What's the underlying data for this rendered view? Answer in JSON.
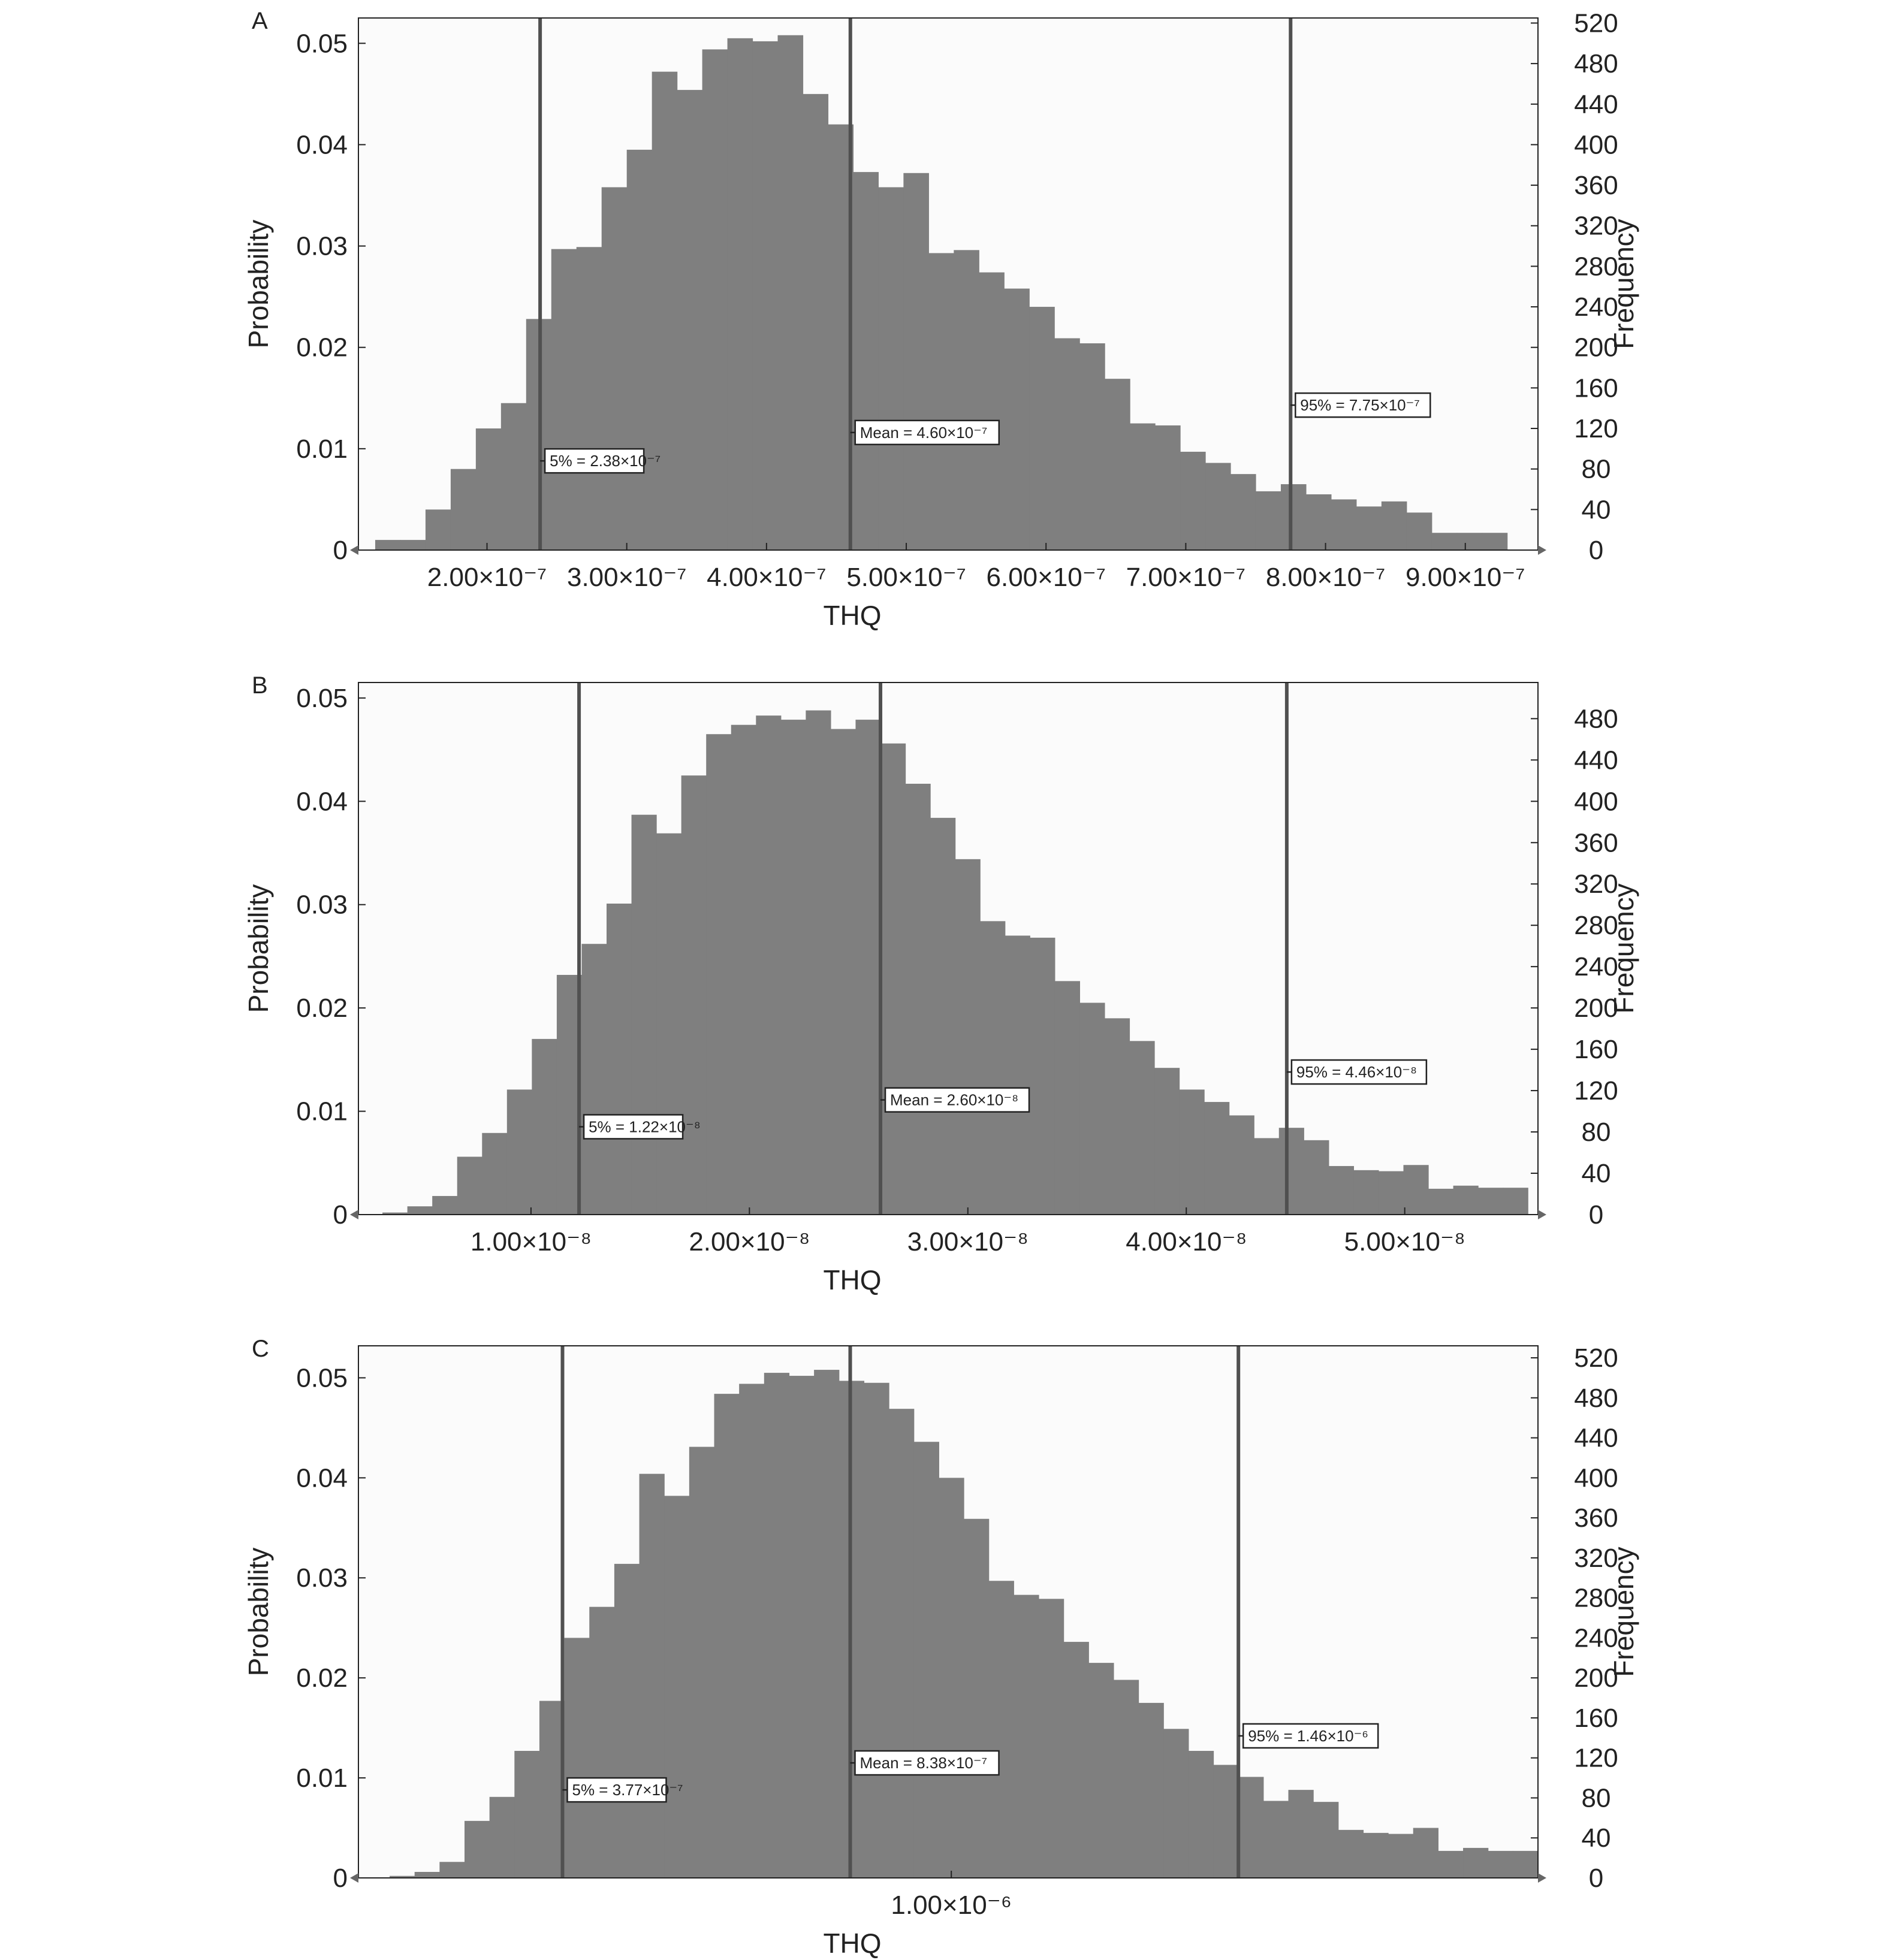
{
  "chart_data": [
    {
      "panel": "A",
      "type": "histogram",
      "xlabel": "THQ",
      "ylabel": "Probability",
      "y2label": "Frequency",
      "xlim": [
        1.08e-07,
        9.52e-07
      ],
      "ylim": [
        0,
        0.0525
      ],
      "y2lim": [
        0,
        525
      ],
      "x_ticks": [
        {
          "value": 2e-07,
          "label": "2.00×10⁻⁷"
        },
        {
          "value": 3e-07,
          "label": "3.00×10⁻⁷"
        },
        {
          "value": 4e-07,
          "label": "4.00×10⁻⁷"
        },
        {
          "value": 5e-07,
          "label": "5.00×10⁻⁷"
        },
        {
          "value": 6e-07,
          "label": "6.00×10⁻⁷"
        },
        {
          "value": 7e-07,
          "label": "7.00×10⁻⁷"
        },
        {
          "value": 8e-07,
          "label": "8.00×10⁻⁷"
        },
        {
          "value": 9e-07,
          "label": "9.00×10⁻⁷"
        }
      ],
      "y_ticks": [
        {
          "value": 0,
          "label": "0"
        },
        {
          "value": 0.01,
          "label": "0.01"
        },
        {
          "value": 0.02,
          "label": "0.02"
        },
        {
          "value": 0.03,
          "label": "0.03"
        },
        {
          "value": 0.04,
          "label": "0.04"
        },
        {
          "value": 0.05,
          "label": "0.05"
        }
      ],
      "y2_ticks": [
        {
          "value": 0,
          "label": "0"
        },
        {
          "value": 40,
          "label": "40"
        },
        {
          "value": 80,
          "label": "80"
        },
        {
          "value": 120,
          "label": "120"
        },
        {
          "value": 160,
          "label": "160"
        },
        {
          "value": 200,
          "label": "200"
        },
        {
          "value": 240,
          "label": "240"
        },
        {
          "value": 280,
          "label": "280"
        },
        {
          "value": 320,
          "label": "320"
        },
        {
          "value": 360,
          "label": "360"
        },
        {
          "value": 400,
          "label": "400"
        },
        {
          "value": 440,
          "label": "440"
        },
        {
          "value": 480,
          "label": "480"
        },
        {
          "value": 520,
          "label": "520"
        }
      ],
      "bin_start": 1.2e-07,
      "bin_width": 1.8e-08,
      "values": [
        0.001,
        0.001,
        0.004,
        0.008,
        0.012,
        0.0145,
        0.0228,
        0.0297,
        0.0299,
        0.0358,
        0.0395,
        0.0472,
        0.0454,
        0.0494,
        0.0505,
        0.0502,
        0.0508,
        0.045,
        0.042,
        0.0373,
        0.0358,
        0.0372,
        0.0293,
        0.0296,
        0.0274,
        0.0258,
        0.024,
        0.0209,
        0.0204,
        0.0169,
        0.0125,
        0.0123,
        0.0097,
        0.0086,
        0.0075,
        0.0058,
        0.0065,
        0.0055,
        0.005,
        0.0043,
        0.0048,
        0.0037,
        0.0017,
        0.0017,
        0.0017
      ],
      "lines": [
        {
          "x": 2.38e-07,
          "label": "5% = 2.38×10⁻⁷",
          "label_y": 0.0088
        },
        {
          "x": 4.6e-07,
          "label": "Mean = 4.60×10⁻⁷",
          "label_y": 0.0116
        },
        {
          "x": 7.75e-07,
          "label": "95% = 7.75×10⁻⁷",
          "label_y": 0.0143
        }
      ],
      "colors": {
        "bars": "#7f7f7f",
        "lines": "#505050"
      }
    },
    {
      "panel": "B",
      "type": "histogram",
      "xlabel": "THQ",
      "ylabel": "Probability",
      "y2label": "Frequency",
      "xlim": [
        2.1e-09,
        5.61e-08
      ],
      "ylim": [
        0,
        0.0515
      ],
      "y2lim": [
        0,
        515
      ],
      "x_ticks": [
        {
          "value": 1e-08,
          "label": "1.00×10⁻⁸"
        },
        {
          "value": 2e-08,
          "label": "2.00×10⁻⁸"
        },
        {
          "value": 3e-08,
          "label": "3.00×10⁻⁸"
        },
        {
          "value": 4e-08,
          "label": "4.00×10⁻⁸"
        },
        {
          "value": 5e-08,
          "label": "5.00×10⁻⁸"
        }
      ],
      "y_ticks": [
        {
          "value": 0,
          "label": "0"
        },
        {
          "value": 0.01,
          "label": "0.01"
        },
        {
          "value": 0.02,
          "label": "0.02"
        },
        {
          "value": 0.03,
          "label": "0.03"
        },
        {
          "value": 0.04,
          "label": "0.04"
        },
        {
          "value": 0.05,
          "label": "0.05"
        }
      ],
      "y2_ticks": [
        {
          "value": 0,
          "label": "0"
        },
        {
          "value": 40,
          "label": "40"
        },
        {
          "value": 80,
          "label": "80"
        },
        {
          "value": 120,
          "label": "120"
        },
        {
          "value": 160,
          "label": "160"
        },
        {
          "value": 200,
          "label": "200"
        },
        {
          "value": 240,
          "label": "240"
        },
        {
          "value": 280,
          "label": "280"
        },
        {
          "value": 320,
          "label": "320"
        },
        {
          "value": 360,
          "label": "360"
        },
        {
          "value": 400,
          "label": "400"
        },
        {
          "value": 440,
          "label": "440"
        },
        {
          "value": 480,
          "label": "480"
        }
      ],
      "bin_start": 3.2e-09,
      "bin_width": 1.14e-09,
      "values": [
        0.0002,
        0.0008,
        0.0018,
        0.0056,
        0.0079,
        0.0121,
        0.017,
        0.0232,
        0.0262,
        0.0301,
        0.0387,
        0.0369,
        0.0425,
        0.0465,
        0.0474,
        0.0483,
        0.0479,
        0.0488,
        0.047,
        0.0479,
        0.0456,
        0.0417,
        0.0384,
        0.0344,
        0.0284,
        0.027,
        0.0268,
        0.0226,
        0.0205,
        0.019,
        0.0168,
        0.0142,
        0.0121,
        0.0109,
        0.0096,
        0.0074,
        0.0084,
        0.0072,
        0.0047,
        0.0043,
        0.0042,
        0.0048,
        0.0025,
        0.0028,
        0.0026,
        0.0026
      ],
      "lines": [
        {
          "x": 1.22e-08,
          "label": "5% = 1.22×10⁻⁸",
          "label_y": 0.0085
        },
        {
          "x": 2.6e-08,
          "label": "Mean = 2.60×10⁻⁸",
          "label_y": 0.0111
        },
        {
          "x": 4.46e-08,
          "label": "95% = 4.46×10⁻⁸",
          "label_y": 0.0138
        }
      ],
      "colors": {
        "bars": "#7f7f7f",
        "lines": "#505050"
      }
    },
    {
      "panel": "C",
      "type": "histogram",
      "xlabel": "THQ",
      "ylabel": "Probability",
      "y2label": "Frequency",
      "xlim": [
        5e-08,
        1.94e-06
      ],
      "ylim": [
        0,
        0.0532
      ],
      "y2lim": [
        0,
        532
      ],
      "x_ticks": [
        {
          "value": 1e-06,
          "label": "1.00×10⁻⁶"
        }
      ],
      "y_ticks": [
        {
          "value": 0,
          "label": "0"
        },
        {
          "value": 0.01,
          "label": "0.01"
        },
        {
          "value": 0.02,
          "label": "0.02"
        },
        {
          "value": 0.03,
          "label": "0.03"
        },
        {
          "value": 0.04,
          "label": "0.04"
        },
        {
          "value": 0.05,
          "label": "0.05"
        }
      ],
      "y2_ticks": [
        {
          "value": 0,
          "label": "0"
        },
        {
          "value": 40,
          "label": "40"
        },
        {
          "value": 80,
          "label": "80"
        },
        {
          "value": 120,
          "label": "120"
        },
        {
          "value": 160,
          "label": "160"
        },
        {
          "value": 200,
          "label": "200"
        },
        {
          "value": 240,
          "label": "240"
        },
        {
          "value": 280,
          "label": "280"
        },
        {
          "value": 320,
          "label": "320"
        },
        {
          "value": 360,
          "label": "360"
        },
        {
          "value": 400,
          "label": "400"
        },
        {
          "value": 440,
          "label": "440"
        },
        {
          "value": 480,
          "label": "480"
        },
        {
          "value": 520,
          "label": "520"
        }
      ],
      "bin_start": 1e-07,
      "bin_width": 4e-08,
      "values": [
        0.0002,
        0.0006,
        0.0016,
        0.0057,
        0.0081,
        0.0127,
        0.0177,
        0.024,
        0.0271,
        0.0314,
        0.0404,
        0.0382,
        0.0431,
        0.0484,
        0.0494,
        0.0505,
        0.0502,
        0.0508,
        0.0497,
        0.0495,
        0.0469,
        0.0436,
        0.04,
        0.0359,
        0.0297,
        0.0283,
        0.0279,
        0.0236,
        0.0215,
        0.0198,
        0.0175,
        0.0149,
        0.0127,
        0.0113,
        0.0101,
        0.0077,
        0.0088,
        0.0076,
        0.0048,
        0.0045,
        0.0044,
        0.005,
        0.0027,
        0.003,
        0.0027,
        0.0027
      ],
      "lines": [
        {
          "x": 3.77e-07,
          "label": "5% = 3.77×10⁻⁷",
          "label_y": 0.0088
        },
        {
          "x": 8.38e-07,
          "label": "Mean = 8.38×10⁻⁷",
          "label_y": 0.0115
        },
        {
          "x": 1.46e-06,
          "label": "95% = 1.46×10⁻⁶",
          "label_y": 0.0142
        }
      ],
      "colors": {
        "bars": "#7f7f7f",
        "lines": "#505050"
      }
    }
  ]
}
